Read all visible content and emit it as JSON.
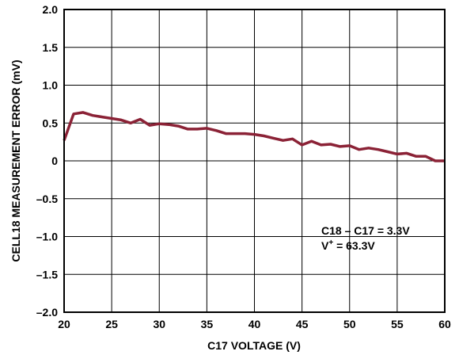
{
  "chart_data": {
    "type": "line",
    "xlabel": "C17 VOLTAGE (V)",
    "ylabel": "CELL18 MEASUREMENT ERROR (mV)",
    "xlim": [
      20,
      60
    ],
    "ylim": [
      -2.0,
      2.0
    ],
    "xticks": [
      20,
      25,
      30,
      35,
      40,
      45,
      50,
      55,
      60
    ],
    "yticks": [
      -2.0,
      -1.5,
      -1.0,
      -0.5,
      0,
      0.5,
      1.0,
      1.5,
      2.0
    ],
    "xtick_labels": [
      "20",
      "25",
      "30",
      "35",
      "40",
      "45",
      "50",
      "55",
      "60"
    ],
    "ytick_labels": [
      "–2.0",
      "–1.5",
      "–1.0",
      "–0.5",
      "0",
      "0.5",
      "1.0",
      "1.5",
      "2.0"
    ],
    "grid": true,
    "line_color": "#8b2236",
    "series": [
      {
        "x": [
          20.0,
          21.0,
          22.0,
          23.0,
          24.0,
          25.0,
          26.0,
          27.0,
          28.0,
          29.0,
          30.0,
          31.0,
          32.0,
          33.0,
          34.0,
          35.0,
          36.0,
          37.0,
          38.0,
          39.0,
          40.0,
          41.0,
          42.0,
          43.0,
          44.0,
          45.0,
          46.0,
          47.0,
          48.0,
          49.0,
          50.0,
          51.0,
          52.0,
          53.0,
          54.0,
          55.0,
          56.0,
          57.0,
          58.0,
          59.0,
          60.0
        ],
        "y": [
          0.27,
          0.62,
          0.64,
          0.6,
          0.58,
          0.56,
          0.54,
          0.5,
          0.55,
          0.47,
          0.49,
          0.48,
          0.46,
          0.42,
          0.42,
          0.43,
          0.4,
          0.36,
          0.36,
          0.36,
          0.35,
          0.33,
          0.3,
          0.27,
          0.29,
          0.21,
          0.26,
          0.21,
          0.22,
          0.19,
          0.2,
          0.15,
          0.17,
          0.15,
          0.12,
          0.09,
          0.1,
          0.06,
          0.06,
          0.0,
          0.0
        ]
      }
    ],
    "annotation": {
      "line1_prefix": "C18 – C17 = 3.3V",
      "line2_v": "V",
      "line2_sup": "+",
      "line2_rest": " = 63.3V"
    }
  }
}
